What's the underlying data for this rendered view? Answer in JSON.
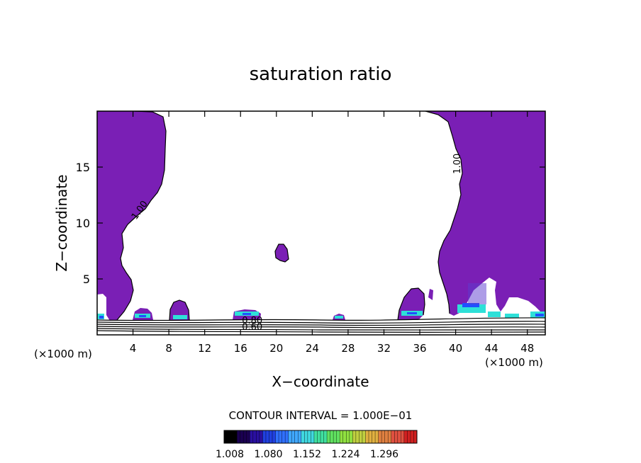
{
  "chart_data": {
    "type": "contour",
    "title": "saturation ratio",
    "xlabel": "X−coordinate",
    "ylabel": "Z−coordinate",
    "x_unit_left": "(×1000 m)",
    "x_unit_right": "(×1000 m)",
    "xlim": [
      0,
      50
    ],
    "ylim": [
      0,
      20
    ],
    "x_ticks": [
      4,
      8,
      12,
      16,
      20,
      24,
      28,
      32,
      36,
      40,
      44,
      48
    ],
    "y_ticks": [
      5,
      10,
      15
    ],
    "contour_labels": [
      {
        "text": "1.00",
        "x": 5.0,
        "y": 11.0,
        "rotate": -55
      },
      {
        "text": "1.00",
        "x": 40.5,
        "y": 15.3,
        "rotate": -90
      },
      {
        "text": "0.80",
        "x": 17.3,
        "y": 1.0,
        "rotate": 0
      },
      {
        "text": "0.60",
        "x": 17.3,
        "y": 0.45,
        "rotate": 0
      }
    ],
    "contour_interval_text": "CONTOUR INTERVAL = 1.000E−01",
    "colorbar": {
      "tick_labels": [
        "1.008",
        "1.080",
        "1.152",
        "1.224",
        "1.296"
      ],
      "colors": [
        "#000000",
        "#1a0050",
        "#2a10a0",
        "#2040e0",
        "#3070ff",
        "#40a8ff",
        "#40d8e0",
        "#40e0a0",
        "#60e060",
        "#90e040",
        "#c0d040",
        "#e0b040",
        "#e08040",
        "#e05040",
        "#d02020"
      ]
    },
    "colors": {
      "fill": "#7a1fb5",
      "cyan": "#2ee0d8",
      "blue": "#2050ff",
      "contour": "#000000"
    }
  }
}
